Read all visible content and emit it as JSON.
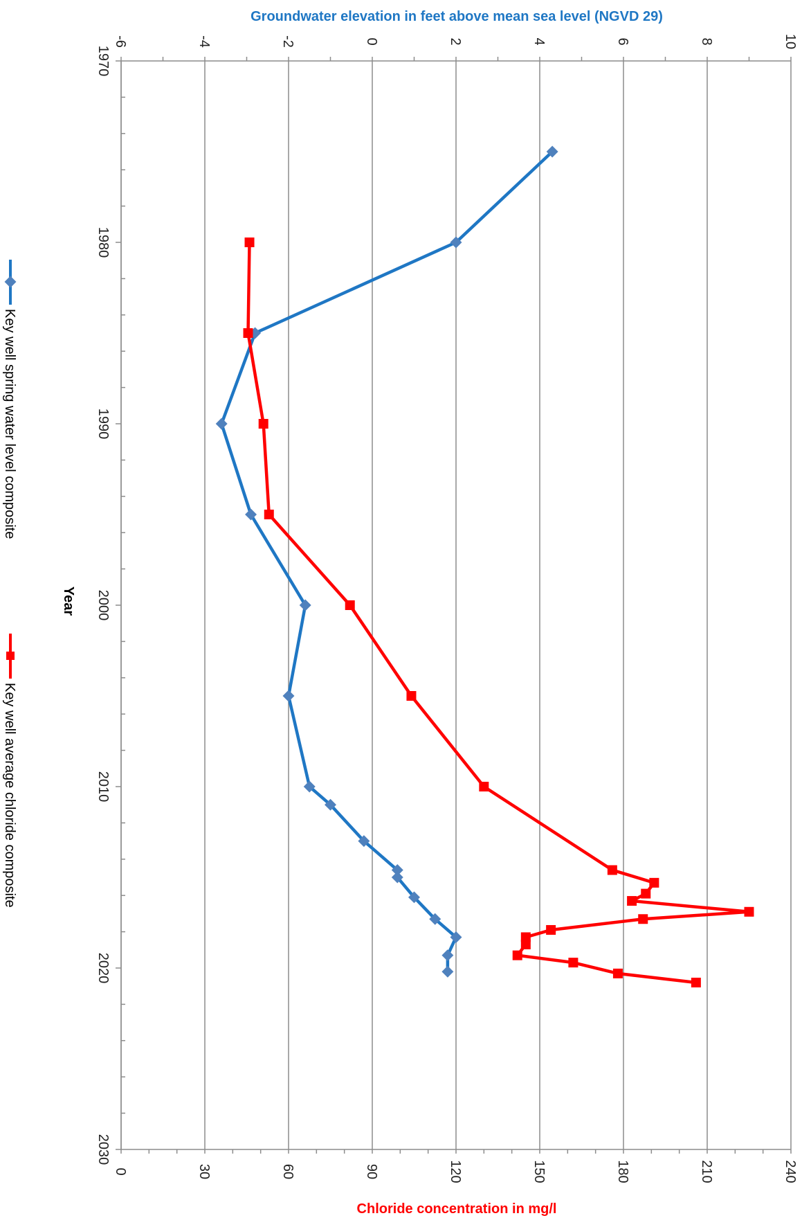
{
  "chart_data": {
    "type": "line",
    "orientation": "rotated-90-clockwise",
    "title_left_axis": "Groundwater elevation in feet above mean sea level (NGVD 29)",
    "title_right_axis": "Chloride concentration in mg/l",
    "xlabel": "Year",
    "x_range": [
      1970,
      2030
    ],
    "x_ticks": [
      "1970",
      "1980",
      "1990",
      "2000",
      "2010",
      "2020",
      "2030"
    ],
    "y_left_range": [
      -6,
      10
    ],
    "y_left_ticks": [
      "-6",
      "-4",
      "-2",
      "0",
      "2",
      "4",
      "6",
      "8",
      "10"
    ],
    "y_right_range": [
      0,
      240
    ],
    "y_right_ticks": [
      "0",
      "30",
      "60",
      "90",
      "120",
      "150",
      "180",
      "210",
      "240"
    ],
    "grid": true,
    "legend_position": "bottom",
    "series": [
      {
        "name": "Key well spring water level composite",
        "axis": "left",
        "color": "#1f77c4",
        "marker": "diamond",
        "marker_color": "#4f81bd",
        "x": [
          1975,
          1980,
          1985,
          1990,
          1995,
          2000,
          2005,
          2010,
          2011,
          2013,
          2014.6,
          2015,
          2016.1,
          2017.3,
          2018.3,
          2019.3,
          2020.2
        ],
        "y": [
          4.3,
          2.0,
          -2.8,
          -3.6,
          -2.9,
          -1.6,
          -2.0,
          -1.5,
          -1.0,
          -0.2,
          0.6,
          0.6,
          1.0,
          1.5,
          2.0,
          1.8,
          1.8
        ]
      },
      {
        "name": "Key well average chloride composite",
        "axis": "right",
        "color": "#ff0000",
        "marker": "square",
        "marker_color": "#ff0000",
        "x": [
          1980,
          1985,
          1990,
          1995,
          2000,
          2005,
          2010,
          2014.6,
          2015.3,
          2015.9,
          2016.3,
          2016.9,
          2017.3,
          2017.9,
          2018.3,
          2018.7,
          2019.3,
          2019.7,
          2020.3,
          2020.8
        ],
        "y": [
          46,
          45.5,
          51,
          53,
          82,
          104,
          130,
          176,
          191,
          188,
          183,
          225,
          187,
          154,
          145,
          145,
          142,
          162,
          178,
          206
        ]
      }
    ]
  }
}
